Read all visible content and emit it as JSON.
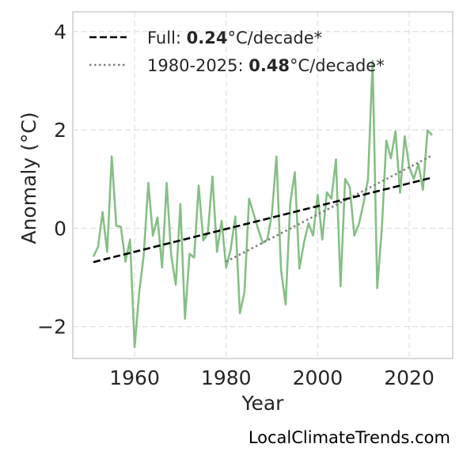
{
  "chart_data": {
    "type": "line",
    "title": "",
    "xlabel": "Year",
    "ylabel": "Anomaly (°C)",
    "xlim": [
      1946.5,
      2029.5
    ],
    "ylim": [
      -2.65,
      4.4
    ],
    "xticks": [
      1960,
      1980,
      2000,
      2020
    ],
    "yticks": [
      -2,
      0,
      2,
      4
    ],
    "ytick_labels": [
      "−2",
      "0",
      "2",
      "4"
    ],
    "grid": true,
    "legend_position": "top-left",
    "series": [
      {
        "x": [
          1951,
          1952,
          1953,
          1954,
          1955,
          1956,
          1957,
          1958,
          1959,
          1960,
          1961,
          1962,
          1963,
          1964,
          1965,
          1966,
          1967,
          1968,
          1969,
          1970,
          1971,
          1972,
          1973,
          1974,
          1975,
          1976,
          1977,
          1978,
          1979,
          1980,
          1981,
          1982,
          1983,
          1984,
          1985,
          1986,
          1987,
          1988,
          1989,
          1990,
          1991,
          1992,
          1993,
          1994,
          1995,
          1996,
          1997,
          1998,
          1999,
          2000,
          2001,
          2002,
          2003,
          2004,
          2005,
          2006,
          2007,
          2008,
          2009,
          2010,
          2011,
          2012,
          2013,
          2014,
          2015,
          2016,
          2017,
          2018,
          2019,
          2020,
          2021,
          2022,
          2023,
          2024,
          2025
        ],
        "values": [
          -0.58,
          -0.38,
          0.33,
          -0.48,
          1.46,
          0.05,
          0.03,
          -0.68,
          -0.23,
          -2.42,
          -1.3,
          -0.55,
          0.92,
          -0.15,
          0.22,
          -0.8,
          0.92,
          -0.55,
          -1.15,
          0.49,
          -1.84,
          -0.52,
          -0.6,
          0.87,
          -0.25,
          -0.1,
          1.05,
          -0.48,
          0.15,
          -0.8,
          -0.43,
          0.24,
          -1.73,
          -1.3,
          0.6,
          0.3,
          -0.02,
          -0.3,
          -0.23,
          0.3,
          1.46,
          -0.85,
          -1.55,
          0.5,
          1.14,
          -0.82,
          -0.3,
          0.1,
          -0.15,
          0.68,
          -0.23,
          0.73,
          0.6,
          1.4,
          -1.18,
          1.0,
          0.84,
          -0.15,
          0.08,
          0.5,
          1.0,
          3.4,
          -1.22,
          -0.02,
          1.78,
          1.42,
          1.97,
          0.72,
          1.87,
          1.25,
          1.0,
          1.31,
          0.78,
          1.99,
          1.89
        ],
        "color": "#86bf86"
      },
      {
        "name": "Full: 0.24°C/decade*",
        "x": [
          1951,
          2025
        ],
        "values": [
          -0.69,
          1.03
        ],
        "style": "dashed",
        "color": "#000000"
      },
      {
        "name": "1980-2025: 0.48°C/decade*",
        "x": [
          1980,
          2025
        ],
        "values": [
          -0.68,
          1.48
        ],
        "style": "dotted",
        "color": "#808080"
      }
    ]
  },
  "legend": {
    "full_prefix": "Full: ",
    "full_value": "0.24",
    "full_suffix": "°C/decade*",
    "recent_prefix": "1980-2025: ",
    "recent_value": "0.48",
    "recent_suffix": "°C/decade*"
  },
  "watermark": "LocalClimateTrends.com",
  "colors": {
    "data_line": "#86bf86",
    "full_trend": "#000000",
    "recent_trend": "#808080",
    "grid": "#e0e0e0",
    "frame": "#cccccc"
  }
}
